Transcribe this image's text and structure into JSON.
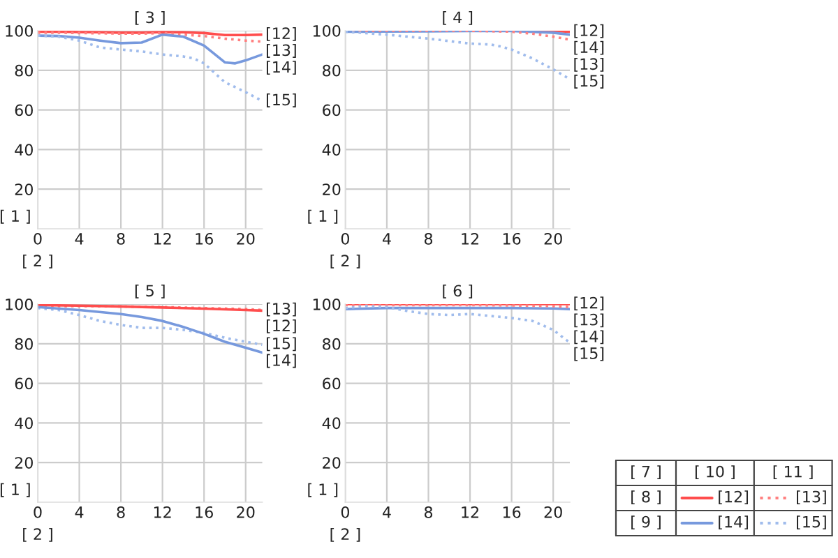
{
  "chart_data": [
    {
      "type": "line",
      "title": "[ 3 ]",
      "xlabel": "[ 2 ]",
      "ylabel": "[ 1 ]",
      "xlim": [
        0,
        21.6
      ],
      "ylim": [
        0,
        100
      ],
      "xticks": [
        0,
        4,
        8,
        12,
        16,
        20
      ],
      "yticks": [
        20,
        40,
        60,
        80,
        100
      ],
      "grid": true,
      "marker": "none",
      "series": [
        {
          "name": "[12]",
          "color": "#ff4d4d",
          "line_style": "solid",
          "x": [
            0,
            2,
            4,
            6,
            8,
            10,
            12,
            14,
            16,
            18,
            20,
            21.6
          ],
          "values": [
            99.5,
            99.5,
            99.3,
            99.2,
            99,
            99,
            99.3,
            99.2,
            98.8,
            97.8,
            97.8,
            98
          ]
        },
        {
          "name": "[13]",
          "color": "#ff8080",
          "line_style": "dotted",
          "x": [
            0,
            2,
            4,
            6,
            8,
            10,
            12,
            14,
            16,
            18,
            20,
            21.6
          ],
          "values": [
            99,
            99,
            98.8,
            98.7,
            98.5,
            98.5,
            98.8,
            98,
            97.3,
            96,
            95,
            94.5
          ]
        },
        {
          "name": "[14]",
          "color": "#7799dd",
          "line_style": "solid",
          "x": [
            0,
            2,
            4,
            6,
            8,
            10,
            12,
            14,
            16,
            18,
            19,
            20,
            21.6
          ],
          "values": [
            97.5,
            97.3,
            96.5,
            95,
            93.7,
            94,
            98,
            97,
            92.5,
            84,
            83.5,
            85,
            88
          ]
        },
        {
          "name": "[15]",
          "color": "#a0bcec",
          "line_style": "dotted",
          "x": [
            0,
            2,
            4,
            6,
            8,
            10,
            12,
            14,
            15,
            16,
            18,
            20,
            21.6
          ],
          "values": [
            97.5,
            97,
            95,
            91.5,
            90.5,
            89.5,
            88,
            87,
            86,
            83.5,
            74,
            69,
            64.5
          ]
        }
      ]
    },
    {
      "type": "line",
      "title": "[ 4 ]",
      "xlabel": "[ 2 ]",
      "ylabel": "[ 1 ]",
      "xlim": [
        0,
        21.6
      ],
      "ylim": [
        0,
        100
      ],
      "xticks": [
        0,
        4,
        8,
        12,
        16,
        20
      ],
      "yticks": [
        20,
        40,
        60,
        80,
        100
      ],
      "grid": true,
      "marker": "none",
      "series": [
        {
          "name": "[12]",
          "color": "#ff4d4d",
          "line_style": "solid",
          "x": [
            0,
            4,
            8,
            12,
            16,
            20,
            21.6
          ],
          "values": [
            100,
            100,
            100,
            100,
            100,
            99.8,
            99.5
          ]
        },
        {
          "name": "[14]",
          "color": "#7799dd",
          "line_style": "solid",
          "x": [
            0,
            4,
            8,
            12,
            16,
            20,
            21.6
          ],
          "values": [
            99.5,
            99.6,
            99.7,
            99.8,
            99.8,
            99,
            98
          ]
        },
        {
          "name": "[13]",
          "color": "#ff8080",
          "line_style": "dotted",
          "x": [
            0,
            4,
            8,
            12,
            16,
            18,
            20,
            21.6
          ],
          "values": [
            100,
            100,
            100,
            100,
            99.5,
            98.5,
            97,
            95.5
          ]
        },
        {
          "name": "[15]",
          "color": "#a0bcec",
          "line_style": "dotted",
          "x": [
            0,
            4,
            8,
            12,
            14,
            15,
            16,
            18,
            20,
            21.6
          ],
          "values": [
            99.5,
            98,
            96,
            93.5,
            93,
            92,
            90.5,
            86,
            80.5,
            75.5
          ]
        }
      ]
    },
    {
      "type": "line",
      "title": "[ 5 ]",
      "xlabel": "[ 2 ]",
      "ylabel": "[ 1 ]",
      "xlim": [
        0,
        21.6
      ],
      "ylim": [
        0,
        100
      ],
      "xticks": [
        0,
        4,
        8,
        12,
        16,
        20
      ],
      "yticks": [
        20,
        40,
        60,
        80,
        100
      ],
      "grid": true,
      "marker": "none",
      "series": [
        {
          "name": "[13]",
          "color": "#ff8080",
          "line_style": "dotted",
          "x": [
            0,
            4,
            8,
            12,
            16,
            20,
            21.6
          ],
          "values": [
            99,
            99,
            98.8,
            98.5,
            98,
            97.5,
            97
          ]
        },
        {
          "name": "[12]",
          "color": "#ff4d4d",
          "line_style": "solid",
          "x": [
            0,
            4,
            8,
            12,
            16,
            20,
            21.6
          ],
          "values": [
            99.5,
            99.2,
            98.8,
            98.3,
            97.7,
            97,
            96.7
          ]
        },
        {
          "name": "[15]",
          "color": "#a0bcec",
          "line_style": "dotted",
          "x": [
            0,
            2,
            4,
            6,
            8,
            10,
            12,
            14,
            16,
            18,
            20,
            21.6
          ],
          "values": [
            98,
            97,
            94.5,
            91.5,
            89.5,
            88,
            88,
            87,
            85.5,
            83,
            81,
            79.5
          ]
        },
        {
          "name": "[14]",
          "color": "#7799dd",
          "line_style": "solid",
          "x": [
            0,
            4,
            8,
            10,
            12,
            14,
            16,
            18,
            20,
            21.6
          ],
          "values": [
            98.5,
            97,
            95,
            93.5,
            91.5,
            88.5,
            85,
            81,
            78,
            75.5
          ]
        }
      ]
    },
    {
      "type": "line",
      "title": "[ 6 ]",
      "xlabel": "[ 2 ]",
      "ylabel": "[ 1 ]",
      "xlim": [
        0,
        21.6
      ],
      "ylim": [
        0,
        100
      ],
      "xticks": [
        0,
        4,
        8,
        12,
        16,
        20
      ],
      "yticks": [
        20,
        40,
        60,
        80,
        100
      ],
      "grid": true,
      "marker": "none",
      "legend": "right",
      "series": [
        {
          "name": "[12]",
          "color": "#ff4d4d",
          "line_style": "solid",
          "x": [
            0,
            4,
            8,
            12,
            16,
            20,
            21.6
          ],
          "values": [
            100,
            100,
            100,
            100,
            100,
            100,
            100
          ]
        },
        {
          "name": "[14]",
          "color": "#7799dd",
          "line_style": "solid",
          "x": [
            0,
            4,
            8,
            12,
            16,
            20,
            21.6
          ],
          "values": [
            97.5,
            98,
            98,
            98,
            98,
            97.8,
            97.5
          ]
        },
        {
          "name": "[13]",
          "color": "#ff8080",
          "line_style": "dotted",
          "x": [
            0,
            4,
            8,
            12,
            16,
            20,
            21.6
          ],
          "values": [
            99.5,
            99.5,
            99.5,
            99.5,
            99.3,
            99,
            98.5
          ]
        },
        {
          "name": "[15]",
          "color": "#a0bcec",
          "line_style": "dotted",
          "x": [
            0,
            2,
            4,
            6,
            8,
            10,
            12,
            14,
            16,
            18,
            20,
            21.6
          ],
          "values": [
            98,
            99,
            98.5,
            96.5,
            95,
            94.5,
            95,
            94,
            93,
            91.5,
            87,
            80.5
          ]
        }
      ],
      "annotations": [
        "[ 7 ]",
        "[ 10 ]",
        "[ 11 ]",
        "[ 8 ]",
        "[ 9 ]"
      ]
    }
  ]
}
